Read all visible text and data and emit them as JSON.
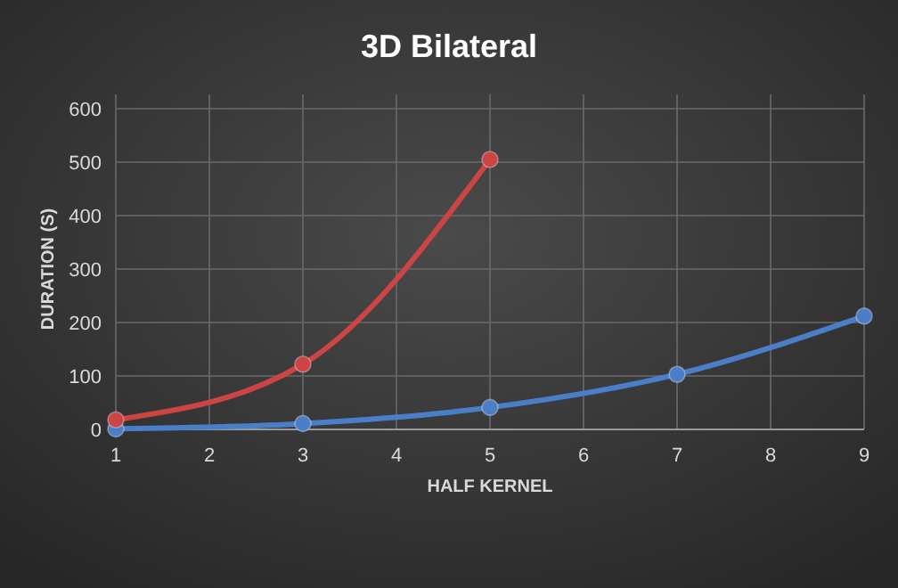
{
  "chart_data": {
    "type": "line",
    "title": "3D Bilateral",
    "xlabel": "HALF KERNEL",
    "ylabel": "DURATION (S)",
    "xlim": [
      1,
      9
    ],
    "xticks": [
      1,
      2,
      3,
      4,
      5,
      6,
      7,
      8,
      9
    ],
    "ylim": [
      0,
      600
    ],
    "yticks": [
      0,
      100,
      200,
      300,
      400,
      500,
      600
    ],
    "grid": true,
    "marker": "circle",
    "line_style": "solid",
    "series": [
      {
        "color": "#4a7fc8",
        "x": [
          1,
          3,
          5,
          7,
          9
        ],
        "values": [
          1,
          11,
          41,
          103,
          212
        ]
      },
      {
        "color": "#cc4444",
        "x": [
          1,
          3,
          5
        ],
        "values": [
          18,
          122,
          505
        ]
      }
    ]
  }
}
